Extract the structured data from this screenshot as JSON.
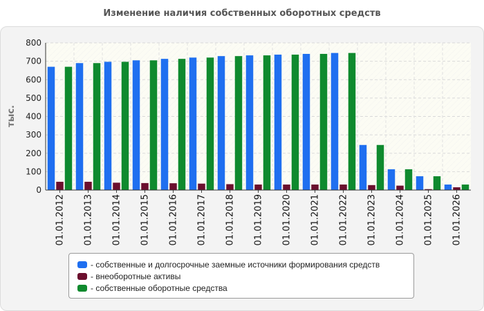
{
  "chart_data": {
    "type": "bar",
    "title": "Изменение наличия собственных оборотных средств",
    "ylabel": "тыс.",
    "xlabel": "",
    "ylim": [
      0,
      800
    ],
    "yticks": [
      0,
      100,
      200,
      300,
      400,
      500,
      600,
      700,
      800
    ],
    "grid": true,
    "legend_position": "bottom",
    "categories": [
      "01.01.2012",
      "01.01.2013",
      "01.01.2014",
      "01.01.2015",
      "01.01.2016",
      "01.01.2017",
      "01.01.2018",
      "01.01.2019",
      "01.01.2020",
      "01.01.2021",
      "01.01.2022",
      "01.01.2023",
      "01.01.2024",
      "01.01.2025",
      "01.01.2026"
    ],
    "series": [
      {
        "name": "- собственные и долгосрочные заемные источники формирования средств",
        "color": "#1f6ff0",
        "values": [
          670,
          690,
          697,
          705,
          713,
          720,
          728,
          732,
          736,
          740,
          745,
          245,
          113,
          75,
          30
        ]
      },
      {
        "name": "- внеоборотные активы",
        "color": "#6b0f2e",
        "values": [
          45,
          45,
          40,
          38,
          37,
          35,
          32,
          30,
          30,
          30,
          30,
          27,
          24,
          5,
          15
        ]
      },
      {
        "name": "- собственные оборотные средства",
        "color": "#0f8a2e",
        "values": [
          670,
          690,
          697,
          705,
          713,
          720,
          728,
          732,
          736,
          740,
          745,
          245,
          113,
          75,
          30
        ]
      }
    ]
  }
}
